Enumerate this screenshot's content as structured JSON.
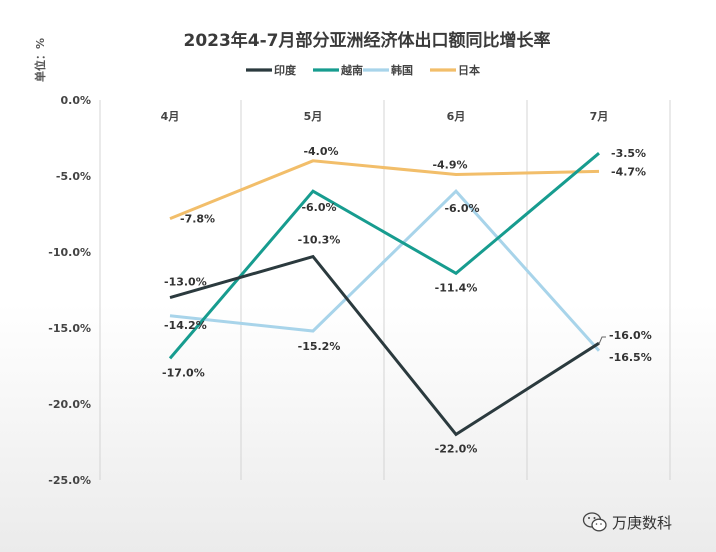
{
  "colors": {
    "India": "#2b3a3e",
    "Vietnam": "#179c8f",
    "Korea": "#a8d4ea",
    "Japan": "#f2be6a"
  },
  "chart_data": {
    "type": "line",
    "title": "2023年4-7月部分亚洲经济体出口额同比增长率",
    "ylabel": "单位：%",
    "categories": [
      "4月",
      "5月",
      "6月",
      "7月"
    ],
    "ylim": [
      -25,
      0
    ],
    "yticks": [
      "0.0%",
      "-5.0%",
      "-10.0%",
      "-15.0%",
      "-20.0%",
      "-25.0%"
    ],
    "grid": "vertical",
    "legend_position": "top",
    "series": [
      {
        "name": "印度",
        "key": "India",
        "values": [
          -13.0,
          -10.3,
          -22.0,
          -16.0
        ],
        "labels": [
          "-13.0%",
          "-10.3%",
          "-22.0%",
          "-16.0%"
        ]
      },
      {
        "name": "越南",
        "key": "Vietnam",
        "values": [
          -17.0,
          -6.0,
          -11.4,
          -3.5
        ],
        "labels": [
          "-17.0%",
          "-6.0%",
          "-11.4%",
          "-3.5%"
        ]
      },
      {
        "name": "韩国",
        "key": "Korea",
        "values": [
          -14.2,
          -15.2,
          -6.0,
          -16.5
        ],
        "labels": [
          "-14.2%",
          "-15.2%",
          "-6.0%",
          "-16.5%"
        ]
      },
      {
        "name": "日本",
        "key": "Japan",
        "values": [
          -7.8,
          -4.0,
          -4.9,
          -4.7
        ],
        "labels": [
          "-7.8%",
          "-4.0%",
          "-4.9%",
          "-4.7%"
        ]
      }
    ]
  },
  "watermark": {
    "text": "万庚数科",
    "icon": "wechat-icon"
  }
}
